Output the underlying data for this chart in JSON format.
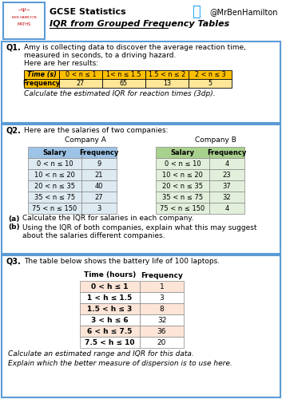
{
  "title_line1": "GCSE Statistics",
  "title_line2": "IQR from Grouped Frequency Tables",
  "twitter": "@MrBenHamilton",
  "bg_color": "#ffffff",
  "border_color": "#5b9bd5",
  "q1": {
    "label": "Q1.",
    "text1": "Amy is collecting data to discover the average reaction time,",
    "text2": "measured in seconds, to a driving hazard.",
    "text3": "Here are her results:",
    "table_header_bg": "#ffc000",
    "table_row_bg": "#ffe699",
    "table_headers": [
      "Time (s)",
      "0 < n ≤ 1",
      "1< n ≤ 1.5",
      "1.5 < n ≤ 2",
      "2 < n ≤ 3"
    ],
    "table_row": [
      "Frequency",
      "27",
      "65",
      "13",
      "5"
    ],
    "footer": "Calculate the estimated IQR for reaction times (3dp)."
  },
  "q2": {
    "label": "Q2.",
    "text1": "Here are the salaries of two companies:",
    "company_a_title": "Company A",
    "company_b_title": "Company B",
    "table_header_bg_a": "#9dc3e6",
    "table_row_bg_a": "#deeaf1",
    "table_header_bg_b": "#a9d18e",
    "table_row_bg_b": "#e2efda",
    "headers": [
      "Salary",
      "Frequency"
    ],
    "company_a": [
      [
        "0 < n ≤ 10",
        "9"
      ],
      [
        "10 < n ≤ 20",
        "21"
      ],
      [
        "20 < n ≤ 35",
        "40"
      ],
      [
        "35 < n ≤ 75",
        "27"
      ],
      [
        "75 < n ≤ 150",
        "3"
      ]
    ],
    "company_b": [
      [
        "0 < n ≤ 10",
        "4"
      ],
      [
        "10 < n ≤ 20",
        "23"
      ],
      [
        "20 < n ≤ 35",
        "37"
      ],
      [
        "35 < n ≤ 75",
        "32"
      ],
      [
        "75 < n ≤ 150",
        "4"
      ]
    ],
    "footer_a_label": "(a)",
    "footer_a_text": "Calculate the IQR for salaries in each company.",
    "footer_b_label": "(b)",
    "footer_b_text": "Using the IQR of both companies, explain what this may suggest",
    "footer_b_text2": "about the salaries different companies."
  },
  "q3": {
    "label": "Q3.",
    "text1": "The table below shows the battery life of 100 laptops.",
    "table_row_bg": "#fce4d6",
    "headers": [
      "Time (hours)",
      "Frequency"
    ],
    "rows": [
      [
        "0 < h ≤ 1",
        "1"
      ],
      [
        "1 < h ≤ 1.5",
        "3"
      ],
      [
        "1.5 < h ≤ 3",
        "8"
      ],
      [
        "3 < h ≤ 6",
        "32"
      ],
      [
        "6 < h ≤ 7.5",
        "36"
      ],
      [
        "7.5 < h ≤ 10",
        "20"
      ]
    ],
    "footer1": "Calculate an estimated range and IQR for this data.",
    "footer2": "Explain which the better measure of dispersion is to use here."
  }
}
